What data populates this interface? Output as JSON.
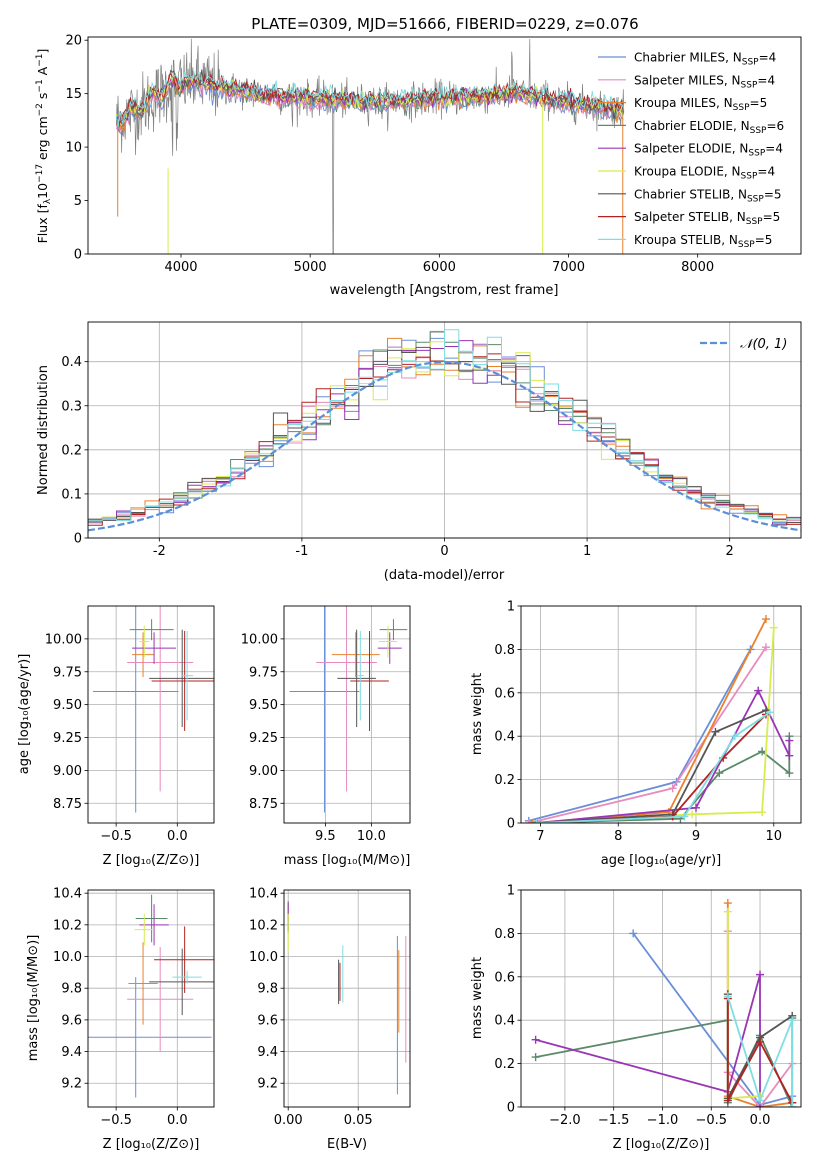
{
  "figure": {
    "title": "PLATE=0309, MJD=51666, FIBERID=0229, z=0.076"
  },
  "colors": {
    "Chabrier MILES": "#6a8fd8",
    "Salpeter MILES": "#e88bbf",
    "Kroupa MILES": "#e9822f",
    "Chabrier ELODIE": "#5b8a6a",
    "Salpeter ELODIE": "#9a35b5",
    "Kroupa ELODIE": "#d8ec4d",
    "Chabrier STELIB": "#555555",
    "Salpeter STELIB": "#b22222",
    "Kroupa STELIB": "#7fdde3",
    "data": "#808080",
    "normal": "#5b8fd8"
  },
  "chart_data": [
    {
      "id": "spectrum",
      "type": "line",
      "xlabel": "wavelength [Angstrom, rest frame]",
      "ylabel_main": "Flux [f",
      "ylabel_sub1": "λ",
      "ylabel_mid": "10",
      "ylabel_sup1": "−17",
      "ylabel_rest": " erg cm",
      "ylabel_sup2": "−2",
      "ylabel_rest2": " s",
      "ylabel_sup3": "−1",
      "ylabel_rest3": " A",
      "ylabel_sup4": "−1",
      "ylabel_end": "]",
      "xlim": [
        3280,
        8800
      ],
      "ylim": [
        0,
        20.3
      ],
      "xticks": [
        4000,
        5000,
        6000,
        7000,
        8000
      ],
      "yticks": [
        0,
        5,
        10,
        15,
        20
      ],
      "legend": [
        {
          "name": "Chabrier MILES",
          "n": "4"
        },
        {
          "name": "Salpeter MILES",
          "n": "4"
        },
        {
          "name": "Kroupa MILES",
          "n": "5"
        },
        {
          "name": "Chabrier ELODIE",
          "n": "6"
        },
        {
          "name": "Salpeter ELODIE",
          "n": "4"
        },
        {
          "name": "Kroupa ELODIE",
          "n": "4"
        },
        {
          "name": "Chabrier STELIB",
          "n": "5"
        },
        {
          "name": "Salpeter STELIB",
          "n": "5"
        },
        {
          "name": "Kroupa STELIB",
          "n": "5"
        }
      ],
      "legend_placement": "upper-right",
      "data_profile": [
        [
          3500,
          12.5
        ],
        [
          3700,
          13.8
        ],
        [
          3900,
          15.6
        ],
        [
          4100,
          16.2
        ],
        [
          4300,
          15.6
        ],
        [
          4500,
          15.2
        ],
        [
          4800,
          14.7
        ],
        [
          5000,
          14.6
        ],
        [
          5300,
          14.3
        ],
        [
          5600,
          14.2
        ],
        [
          6000,
          14.6
        ],
        [
          6300,
          14.7
        ],
        [
          6600,
          15.1
        ],
        [
          6900,
          14.4
        ],
        [
          7200,
          13.8
        ],
        [
          7400,
          13.5
        ]
      ]
    },
    {
      "id": "residuals",
      "type": "histogram",
      "xlabel": "(data-model)/error",
      "ylabel": "Normed distribution",
      "xlim": [
        -2.5,
        2.5
      ],
      "ylim": [
        0,
        0.49
      ],
      "xticks": [
        -2,
        -1,
        0,
        1,
        2
      ],
      "yticks": [
        0.0,
        0.1,
        0.2,
        0.3,
        0.4
      ],
      "legend": "𝒩(0, 1)",
      "legend_placement": "upper-right",
      "grid": true
    },
    {
      "id": "age_vs_Z",
      "type": "errorbar",
      "xlabel": "Z [log₁₀(Z/Z⊙)]",
      "ylabel": "age  [log₁₀(age/yr)]",
      "xlim": [
        -0.73,
        0.3
      ],
      "ylim": [
        8.6,
        10.25
      ],
      "xticks": [
        -0.5,
        0.0
      ],
      "xticklabels": [
        "−0.5",
        "0.0"
      ],
      "yticks": [
        8.75,
        9.0,
        9.25,
        9.5,
        9.75,
        10.0
      ],
      "yticklabels": [
        "8.75",
        "9.00",
        "9.25",
        "9.50",
        "9.75",
        "10.00"
      ],
      "points": [
        {
          "model": "Chabrier MILES",
          "x": -0.34,
          "xerr": 0.35,
          "y": 9.6,
          "yerr": 0.92
        },
        {
          "model": "Salpeter MILES",
          "x": -0.14,
          "xerr": 0.27,
          "y": 9.82,
          "yerr": 0.98
        },
        {
          "model": "Kroupa MILES",
          "x": -0.28,
          "xerr": 0.09,
          "y": 9.88,
          "yerr": 0.17
        },
        {
          "model": "Chabrier ELODIE",
          "x": -0.21,
          "xerr": 0.18,
          "y": 10.07,
          "yerr": 0.08
        },
        {
          "model": "Salpeter ELODIE",
          "x": -0.19,
          "xerr": 0.18,
          "y": 9.93,
          "yerr": 0.12
        },
        {
          "model": "Kroupa ELODIE",
          "x": -0.27,
          "xerr": 0.04,
          "y": 9.98,
          "yerr": 0.12
        },
        {
          "model": "Chabrier STELIB",
          "x": 0.04,
          "xerr": 0.27,
          "y": 9.7,
          "yerr": 0.37
        },
        {
          "model": "Salpeter STELIB",
          "x": 0.06,
          "xerr": 0.27,
          "y": 9.68,
          "yerr": 0.38
        },
        {
          "model": "Kroupa STELIB",
          "x": 0.08,
          "xerr": 0.05,
          "y": 9.72,
          "yerr": 0.34
        }
      ]
    },
    {
      "id": "age_vs_mass",
      "type": "errorbar",
      "xlabel": "mass [log₁₀(M/M⊙)]",
      "xlim": [
        9.05,
        10.42
      ],
      "ylim": [
        8.6,
        10.25
      ],
      "xticks": [
        9.5,
        10.0
      ],
      "xticklabels": [
        "9.5",
        "10.0"
      ],
      "yticks": [
        8.75,
        9.0,
        9.25,
        9.5,
        9.75,
        10.0
      ],
      "yticklabels": [
        "8.75",
        "9.00",
        "9.25",
        "9.50",
        "9.75",
        "10.00"
      ],
      "points": [
        {
          "model": "Chabrier MILES",
          "x": 9.49,
          "xerr": 0.38,
          "y": 9.6,
          "yerr": 0.92
        },
        {
          "model": "Salpeter MILES",
          "x": 9.73,
          "xerr": 0.33,
          "y": 9.82,
          "yerr": 0.98
        },
        {
          "model": "Kroupa MILES",
          "x": 9.83,
          "xerr": 0.26,
          "y": 9.88,
          "yerr": 0.17
        },
        {
          "model": "Chabrier ELODIE",
          "x": 10.24,
          "xerr": 0.15,
          "y": 10.07,
          "yerr": 0.08
        },
        {
          "model": "Salpeter ELODIE",
          "x": 10.2,
          "xerr": 0.13,
          "y": 9.93,
          "yerr": 0.12
        },
        {
          "model": "Kroupa ELODIE",
          "x": 10.18,
          "xerr": 0.1,
          "y": 9.98,
          "yerr": 0.12
        },
        {
          "model": "Chabrier STELIB",
          "x": 9.84,
          "xerr": 0.21,
          "y": 9.7,
          "yerr": 0.37
        },
        {
          "model": "Salpeter STELIB",
          "x": 9.98,
          "xerr": 0.21,
          "y": 9.68,
          "yerr": 0.38
        },
        {
          "model": "Kroupa STELIB",
          "x": 9.88,
          "xerr": 0.04,
          "y": 9.72,
          "yerr": 0.34
        }
      ]
    },
    {
      "id": "weight_vs_age",
      "type": "line",
      "xlabel": "age  [log₁₀(age/yr)]",
      "ylabel": "mass weight",
      "xlim": [
        6.75,
        10.35
      ],
      "ylim": [
        0,
        1
      ],
      "xticks": [
        7,
        8,
        9,
        10
      ],
      "yticks": [
        0.0,
        0.2,
        0.4,
        0.6,
        0.8,
        1.0
      ],
      "grid": true,
      "series": [
        {
          "model": "Chabrier MILES",
          "x": [
            6.85,
            8.75,
            9.7
          ],
          "y": [
            0.01,
            0.19,
            0.8
          ]
        },
        {
          "model": "Salpeter MILES",
          "x": [
            6.85,
            8.7,
            9.9
          ],
          "y": [
            0.0,
            0.16,
            0.81
          ]
        },
        {
          "model": "Kroupa MILES",
          "x": [
            6.9,
            8.65,
            9.9
          ],
          "y": [
            0.0,
            0.05,
            0.94
          ]
        },
        {
          "model": "Chabrier ELODIE",
          "x": [
            6.95,
            8.8,
            9.3,
            9.85,
            10.2,
            10.2
          ],
          "y": [
            0.0,
            0.02,
            0.23,
            0.33,
            0.23,
            0.4
          ]
        },
        {
          "model": "Salpeter ELODIE",
          "x": [
            6.95,
            9.0,
            9.8,
            10.2,
            10.2
          ],
          "y": [
            0.0,
            0.07,
            0.61,
            0.31,
            0.38
          ]
        },
        {
          "model": "Kroupa ELODIE",
          "x": [
            6.95,
            8.95,
            9.85,
            10.0
          ],
          "y": [
            0.0,
            0.04,
            0.05,
            0.9
          ]
        },
        {
          "model": "Chabrier STELIB",
          "x": [
            6.95,
            8.7,
            9.25,
            9.9
          ],
          "y": [
            0.0,
            0.04,
            0.42,
            0.52
          ]
        },
        {
          "model": "Salpeter STELIB",
          "x": [
            6.95,
            8.7,
            9.35,
            9.9
          ],
          "y": [
            0.0,
            0.03,
            0.3,
            0.5
          ]
        },
        {
          "model": "Kroupa STELIB",
          "x": [
            6.95,
            8.85,
            9.5,
            9.95
          ],
          "y": [
            0.0,
            0.03,
            0.4,
            0.51
          ]
        }
      ]
    },
    {
      "id": "mass_vs_Z",
      "type": "errorbar",
      "xlabel": "Z [log₁₀(Z/Z⊙)]",
      "ylabel": "mass [log₁₀(M/M⊙)]",
      "xlim": [
        -0.73,
        0.3
      ],
      "ylim": [
        9.05,
        10.42
      ],
      "xticks": [
        -0.5,
        0.0
      ],
      "xticklabels": [
        "−0.5",
        "0.0"
      ],
      "yticks": [
        9.2,
        9.4,
        9.6,
        9.8,
        10.0,
        10.2,
        10.4
      ],
      "yticklabels": [
        "9.2",
        "9.4",
        "9.6",
        "9.8",
        "10.0",
        "10.2",
        "10.4"
      ],
      "points": [
        {
          "model": "Chabrier MILES",
          "x": -0.34,
          "xerr": 0.62,
          "y": 9.49,
          "yerr": 0.38
        },
        {
          "model": "Salpeter MILES",
          "x": -0.14,
          "xerr": 0.27,
          "y": 9.73,
          "yerr": 0.33
        },
        {
          "model": "Kroupa MILES",
          "x": -0.28,
          "xerr": 0.12,
          "y": 9.83,
          "yerr": 0.26
        },
        {
          "model": "Chabrier ELODIE",
          "x": -0.21,
          "xerr": 0.13,
          "y": 10.24,
          "yerr": 0.15
        },
        {
          "model": "Salpeter ELODIE",
          "x": -0.19,
          "xerr": 0.12,
          "y": 10.2,
          "yerr": 0.13
        },
        {
          "model": "Kroupa ELODIE",
          "x": -0.27,
          "xerr": 0.08,
          "y": 10.17,
          "yerr": 0.1
        },
        {
          "model": "Chabrier STELIB",
          "x": 0.04,
          "xerr": 0.27,
          "y": 9.84,
          "yerr": 0.21
        },
        {
          "model": "Salpeter STELIB",
          "x": 0.06,
          "xerr": 0.25,
          "y": 9.98,
          "yerr": 0.21
        },
        {
          "model": "Kroupa STELIB",
          "x": 0.08,
          "xerr": 0.12,
          "y": 9.87,
          "yerr": 0.04
        }
      ]
    },
    {
      "id": "mass_vs_ebv",
      "type": "errorbar",
      "xlabel": "E(B-V)",
      "xlim": [
        -0.003,
        0.087
      ],
      "ylim": [
        9.05,
        10.42
      ],
      "xticks": [
        0.0,
        0.05
      ],
      "xticklabels": [
        "0.00",
        "0.05"
      ],
      "yticks": [
        9.2,
        9.4,
        9.6,
        9.8,
        10.0,
        10.2,
        10.4
      ],
      "yticklabels": [
        "9.2",
        "9.4",
        "9.6",
        "9.8",
        "10.0",
        "10.2",
        "10.4"
      ],
      "points": [
        {
          "model": "Chabrier MILES",
          "x": 0.078,
          "xerr": 0,
          "y": 9.63,
          "yerr": 0.5
        },
        {
          "model": "Salpeter MILES",
          "x": 0.084,
          "xerr": 0,
          "y": 9.73,
          "yerr": 0.4
        },
        {
          "model": "Kroupa MILES",
          "x": 0.079,
          "xerr": 0,
          "y": 9.78,
          "yerr": 0.26
        },
        {
          "model": "Chabrier ELODIE",
          "x": 0.0,
          "xerr": 0,
          "y": 10.25,
          "yerr": 0.1
        },
        {
          "model": "Salpeter ELODIE",
          "x": 0.0,
          "xerr": 0,
          "y": 10.25,
          "yerr": 0.09
        },
        {
          "model": "Kroupa ELODIE",
          "x": 0.0,
          "xerr": 0,
          "y": 10.15,
          "yerr": 0.12
        },
        {
          "model": "Chabrier STELIB",
          "x": 0.036,
          "xerr": 0,
          "y": 9.84,
          "yerr": 0.14
        },
        {
          "model": "Salpeter STELIB",
          "x": 0.037,
          "xerr": 0,
          "y": 9.84,
          "yerr": 0.12
        },
        {
          "model": "Kroupa STELIB",
          "x": 0.039,
          "xerr": 0,
          "y": 9.89,
          "yerr": 0.18
        }
      ]
    },
    {
      "id": "weight_vs_Z",
      "type": "line",
      "xlabel": "Z [log₁₀(Z/Z⊙)]",
      "ylabel": "mass weight",
      "xlim": [
        -2.45,
        0.42
      ],
      "ylim": [
        0,
        1
      ],
      "xticks": [
        -2.0,
        -1.5,
        -1.0,
        -0.5,
        0.0
      ],
      "xticklabels": [
        "−2.0",
        "−1.5",
        "−1.0",
        "−0.5",
        "0.0"
      ],
      "yticks": [
        0.0,
        0.2,
        0.4,
        0.6,
        0.8,
        1.0
      ],
      "grid": true,
      "series": [
        {
          "model": "Chabrier MILES",
          "x": [
            -1.3,
            0.0,
            0.33
          ],
          "y": [
            0.8,
            0.01,
            0.05
          ]
        },
        {
          "model": "Salpeter MILES",
          "x": [
            -0.33,
            -0.33,
            0.0,
            0.33
          ],
          "y": [
            0.81,
            0.16,
            0.0,
            0.2
          ]
        },
        {
          "model": "Kroupa MILES",
          "x": [
            -0.33,
            -0.33,
            0.0,
            0.33
          ],
          "y": [
            0.94,
            0.05,
            0.0,
            0.02
          ]
        },
        {
          "model": "Chabrier ELODIE",
          "x": [
            -2.3,
            -0.33,
            -0.33,
            0.0,
            0.33,
            0.33
          ],
          "y": [
            0.23,
            0.4,
            0.02,
            0.33,
            0.0,
            0.41
          ]
        },
        {
          "model": "Salpeter ELODIE",
          "x": [
            -2.3,
            -0.33,
            0.0,
            0.0
          ],
          "y": [
            0.31,
            0.07,
            0.61,
            0.0
          ]
        },
        {
          "model": "Kroupa ELODIE",
          "x": [
            -0.33,
            -0.33,
            0.0
          ],
          "y": [
            0.9,
            0.04,
            0.05
          ]
        },
        {
          "model": "Chabrier STELIB",
          "x": [
            -0.33,
            -0.33,
            0.0,
            0.33
          ],
          "y": [
            0.52,
            0.04,
            0.32,
            0.42
          ]
        },
        {
          "model": "Salpeter STELIB",
          "x": [
            -0.33,
            -0.33,
            0.0,
            0.33
          ],
          "y": [
            0.5,
            0.03,
            0.3,
            0.02
          ]
        },
        {
          "model": "Kroupa STELIB",
          "x": [
            -0.33,
            0.0,
            0.33,
            0.33
          ],
          "y": [
            0.51,
            0.03,
            0.4,
            0.0
          ]
        }
      ]
    }
  ]
}
